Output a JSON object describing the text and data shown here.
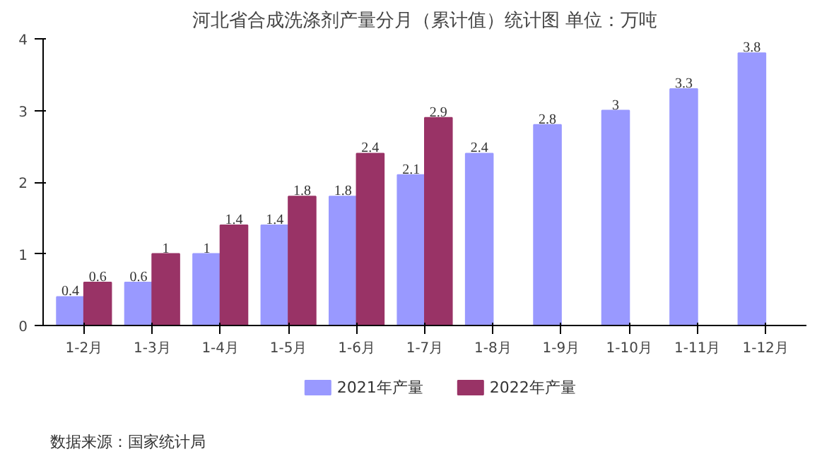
{
  "chart_data": {
    "type": "bar",
    "title": "河北省合成洗涤剂产量分月（累计值）统计图 单位：万吨",
    "categories": [
      "1-2月",
      "1-3月",
      "1-4月",
      "1-5月",
      "1-6月",
      "1-7月",
      "1-8月",
      "1-9月",
      "1-10月",
      "1-11月",
      "1-12月"
    ],
    "series": [
      {
        "name": "2021年产量",
        "color": "#9999ff",
        "values": [
          0.4,
          0.6,
          1,
          1.4,
          1.8,
          2.1,
          2.4,
          2.8,
          3,
          3.3,
          3.8
        ]
      },
      {
        "name": "2022年产量",
        "color": "#993366",
        "values": [
          0.6,
          1,
          1.4,
          1.8,
          2.4,
          2.9,
          null,
          null,
          null,
          null,
          null
        ]
      }
    ],
    "ylim": [
      0,
      4
    ],
    "yticks": [
      0,
      1,
      2,
      3,
      4
    ],
    "grid": false,
    "legend": "bottom",
    "data_labels": true,
    "annotations": [
      "数据来源：国家统计局"
    ]
  }
}
